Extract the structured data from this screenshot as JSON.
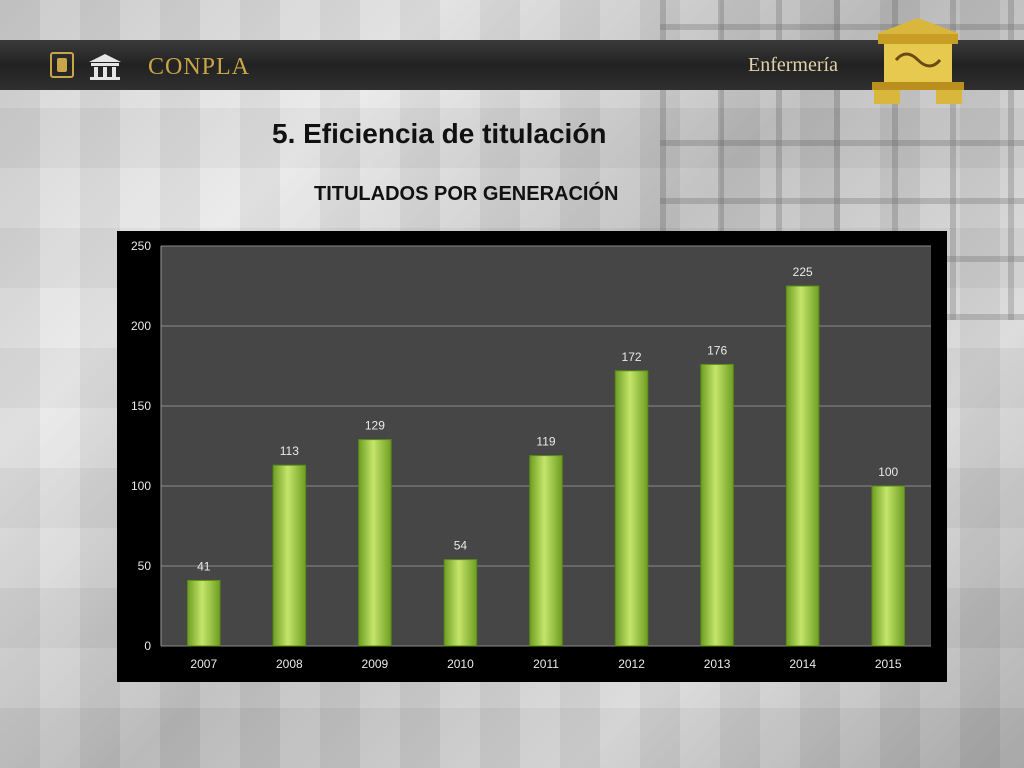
{
  "header": {
    "brand": "CONPLA",
    "school": "Enfermería"
  },
  "slide": {
    "title": "5. Eficiencia de titulación",
    "subtitle": "TITULADOS POR GENERACIÓN"
  },
  "icons": {
    "left_logo_1": "unam-shield-icon",
    "left_logo_2": "nursing-school-building-icon",
    "right_emblem": "temple-emblem-icon"
  },
  "colors": {
    "bar_fill": "#8fc434",
    "bar_highlight": "#c4e56a",
    "plot_bg": "#464646",
    "frame_bg": "#000000",
    "brand_gold": "#c9a54a"
  },
  "chart_data": {
    "type": "bar",
    "title": "TITULADOS POR GENERACIÓN",
    "categories": [
      "2007",
      "2008",
      "2009",
      "2010",
      "2011",
      "2012",
      "2013",
      "2014",
      "2015"
    ],
    "values": [
      41,
      113,
      129,
      54,
      119,
      172,
      176,
      225,
      100
    ],
    "ylim": [
      0,
      250
    ],
    "yticks": [
      0,
      50,
      100,
      150,
      200,
      250
    ],
    "grid": true,
    "legend": "none"
  }
}
